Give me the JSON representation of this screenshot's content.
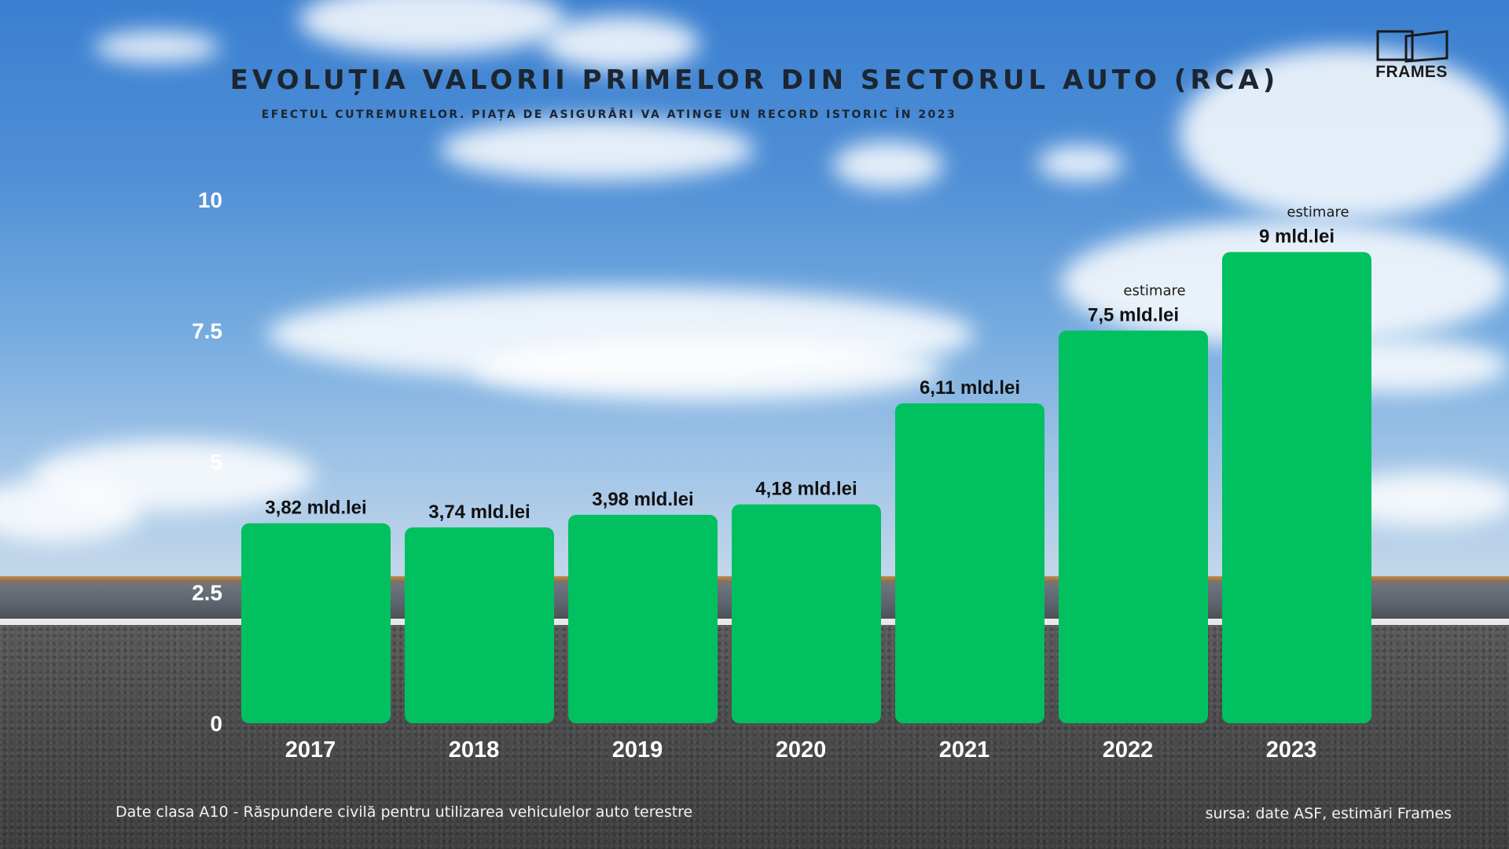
{
  "header": {
    "title": "EVOLUȚIA VALORII PRIMELOR DIN SECTORUL AUTO (RCA)",
    "subtitle": "EFECTUL CUTREMURELOR. PIAȚA DE ASIGURĂRI VA ATINGE UN RECORD ISTORIC ÎN 2023"
  },
  "brand": {
    "logo_text": "FRAMES",
    "logo_icon": "frames-logo-icon"
  },
  "chart_data": {
    "type": "bar",
    "title": "EVOLUȚIA VALORII PRIMELOR DIN SECTORUL AUTO (RCA)",
    "subtitle": "EFECTUL CUTREMURELOR. PIAȚA DE ASIGURĂRI VA ATINGE UN RECORD ISTORIC ÎN 2023",
    "xlabel": "",
    "ylabel": "",
    "categories": [
      "2017",
      "2018",
      "2019",
      "2020",
      "2021",
      "2022",
      "2023"
    ],
    "values": [
      3.82,
      3.74,
      3.98,
      4.18,
      6.11,
      7.5,
      9
    ],
    "data_labels": [
      "3,82 mld.lei",
      "3,74 mld.lei",
      "3,98 mld.lei",
      "4,18 mld.lei",
      "6,11 mld.lei",
      "7,5 mld.lei",
      "9 mld.lei"
    ],
    "annotations": [
      "",
      "",
      "",
      "",
      "",
      "estimare",
      "estimare"
    ],
    "ylim": [
      0,
      10
    ],
    "yticks": [
      0,
      2.5,
      5,
      7.5,
      10
    ],
    "ytick_labels": [
      "0",
      "2.5",
      "5",
      "7.5",
      "10"
    ],
    "grid": false,
    "bar_color": "#00c060"
  },
  "footer": {
    "note": "Date clasa A10 - Răspundere civilă pentru utilizarea vehiculelor auto terestre",
    "source": "sursa: date ASF, estimări Frames"
  },
  "colors": {
    "title": "#1c2530",
    "bar": "#00c060",
    "axis_text": "#ffffff",
    "value_label": "#111111"
  }
}
